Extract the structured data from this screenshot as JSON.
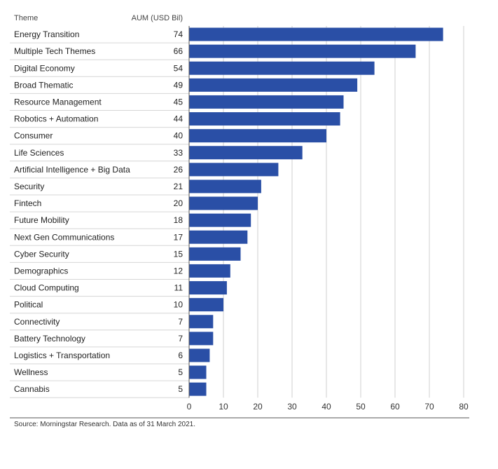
{
  "chart_data": {
    "type": "bar",
    "orientation": "horizontal",
    "column_headers": {
      "category": "Theme",
      "value": "AUM (USD Bil)"
    },
    "categories": [
      "Energy Transition",
      "Multiple Tech Themes",
      "Digital Economy",
      "Broad Thematic",
      "Resource Management",
      "Robotics + Automation",
      "Consumer",
      "Life Sciences",
      "Artificial Intelligence + Big Data",
      "Security",
      "Fintech",
      "Future Mobility",
      "Next Gen Communications",
      "Cyber Security",
      "Demographics",
      "Cloud Computing",
      "Political",
      "Connectivity",
      "Battery Technology",
      "Logistics + Transportation",
      "Wellness",
      "Cannabis"
    ],
    "values": [
      74,
      66,
      54,
      49,
      45,
      44,
      40,
      33,
      26,
      21,
      20,
      18,
      17,
      15,
      12,
      11,
      10,
      7,
      7,
      6,
      5,
      5
    ],
    "xlim": [
      0,
      80
    ],
    "xticks": [
      0,
      10,
      20,
      30,
      40,
      50,
      60,
      70,
      80
    ],
    "bar_color": "#2a4fa6",
    "grid": true
  },
  "footer": {
    "source": "Source: Morningstar Research. Data as of 31 March 2021."
  }
}
